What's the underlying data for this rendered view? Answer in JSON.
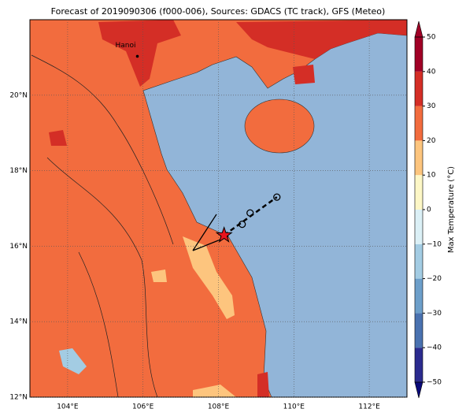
{
  "title": "Forecast of 2019090306 (f000-006), Sources: GDACS (TC track), GFS (Meteo)",
  "map": {
    "xlim": [
      103,
      113
    ],
    "ylim": [
      12,
      22
    ],
    "xticks": [
      {
        "value": 104,
        "label": "104°E"
      },
      {
        "value": 106,
        "label": "106°E"
      },
      {
        "value": 108,
        "label": "108°E"
      },
      {
        "value": 110,
        "label": "110°E"
      },
      {
        "value": 112,
        "label": "112°E"
      }
    ],
    "yticks": [
      {
        "value": 12,
        "label": "12°N"
      },
      {
        "value": 14,
        "label": "14°N"
      },
      {
        "value": 16,
        "label": "16°N"
      },
      {
        "value": 18,
        "label": "18°N"
      },
      {
        "value": 20,
        "label": "20°N"
      }
    ],
    "city": {
      "name": "Hanoi",
      "lon": 105.85,
      "lat": 21.03
    },
    "track": {
      "lon": [
        108.15,
        108.63,
        108.84,
        109.55
      ],
      "lat": [
        16.29,
        16.58,
        16.88,
        17.3
      ]
    }
  },
  "colorbar": {
    "label": "Max Temperature (°C)",
    "lim": [
      -50,
      50
    ],
    "ticks": [
      {
        "value": -50,
        "label": "−50"
      },
      {
        "value": -40,
        "label": "−40"
      },
      {
        "value": -30,
        "label": "−30"
      },
      {
        "value": -20,
        "label": "−20"
      },
      {
        "value": -10,
        "label": "−10"
      },
      0,
      10,
      20,
      30,
      40,
      50
    ],
    "colors": [
      "#2b2b8f",
      "#4a72b0",
      "#6d9fca",
      "#a3cce3",
      "#dbf0f6",
      "#fdf7c6",
      "#fdc57e",
      "#f26c3e",
      "#d42e26",
      "#a10026"
    ]
  }
}
